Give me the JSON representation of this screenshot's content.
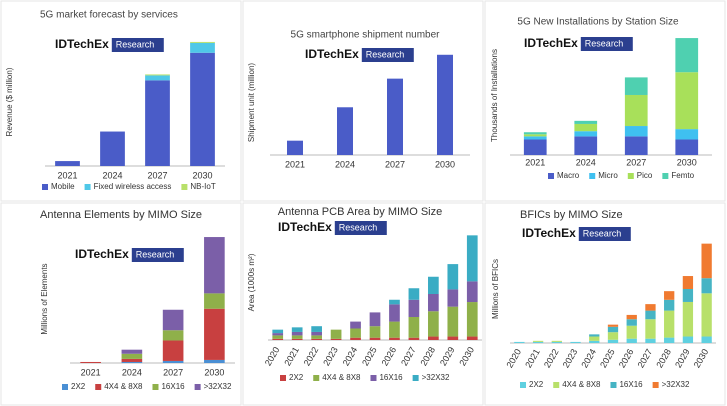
{
  "chart_data": [
    {
      "type": "bar",
      "title": "5G market forecast by services",
      "y_label": "Revenue ($ million)",
      "brand": "IDTechEx",
      "brand_tag": "Research",
      "categories": [
        "2021",
        "2024",
        "2027",
        "2030"
      ],
      "ylim": [
        0,
        130
      ],
      "series": [
        {
          "name": "Mobile",
          "color": "#4a5cc8",
          "values": [
            5,
            35,
            87,
            115
          ]
        },
        {
          "name": "Fixed wireless access",
          "color": "#4fc8e8",
          "values": [
            0,
            0,
            5,
            10
          ]
        },
        {
          "name": "NB-IoT",
          "color": "#b8e06a",
          "values": [
            0,
            0,
            1,
            1
          ]
        }
      ]
    },
    {
      "type": "bar",
      "title": "5G smartphone shipment number",
      "y_label": "Shipment unit (million)",
      "brand": "IDTechEx",
      "brand_tag": "Research",
      "categories": [
        "2021",
        "2024",
        "2027",
        "2030"
      ],
      "ylim": [
        0,
        110
      ],
      "series": [
        {
          "color": "#4a5cc8",
          "values": [
            15,
            50,
            80,
            105
          ]
        }
      ]
    },
    {
      "type": "bar",
      "title": "5G New Installations by Station Size",
      "y_label": "Thousands of Installations",
      "brand": "IDTechEx",
      "brand_tag": "Research",
      "categories": [
        "2021",
        "2024",
        "2027",
        "2030"
      ],
      "ylim": [
        0,
        115
      ],
      "series": [
        {
          "name": "Macro",
          "color": "#4a5cc8",
          "values": [
            15,
            18,
            18,
            15
          ]
        },
        {
          "name": "Micro",
          "color": "#3fc0f0",
          "values": [
            3,
            5,
            10,
            10
          ]
        },
        {
          "name": "Pico",
          "color": "#a8e05a",
          "values": [
            2,
            7,
            30,
            55
          ]
        },
        {
          "name": "Femto",
          "color": "#4fd0b0",
          "values": [
            2,
            3,
            17,
            33
          ]
        }
      ]
    },
    {
      "type": "bar",
      "title": "Antenna Elements by MIMO Size",
      "y_label": "Millions of Elements",
      "brand": "IDTechEx",
      "brand_tag": "Research",
      "categories": [
        "2021",
        "2024",
        "2027",
        "2030"
      ],
      "ylim": [
        0,
        125
      ],
      "series": [
        {
          "name": "2X2",
          "color": "#4a8fd4",
          "values": [
            0,
            1,
            2,
            3
          ]
        },
        {
          "name": "4X4 & 8X8",
          "color": "#c84040",
          "values": [
            1,
            3,
            20,
            50
          ]
        },
        {
          "name": "16X16",
          "color": "#8fb04a",
          "values": [
            0,
            5,
            10,
            15
          ]
        },
        {
          "name": ">32X32",
          "color": "#7b5fa8",
          "values": [
            0,
            4,
            20,
            55
          ]
        }
      ]
    },
    {
      "type": "bar",
      "title": "Antenna PCB Area by MIMO Size",
      "y_label": "Area (1000s m²)",
      "brand": "IDTechEx",
      "brand_tag": "Research",
      "categories": [
        "2020",
        "2021",
        "2022",
        "2023",
        "2024",
        "2025",
        "2026",
        "2027",
        "2028",
        "2029",
        "2030"
      ],
      "ylim": [
        0,
        100
      ],
      "series": [
        {
          "name": "2X2",
          "color": "#c84040",
          "values": [
            1,
            1,
            1,
            1,
            2,
            2,
            2,
            2,
            3,
            3,
            3
          ]
        },
        {
          "name": "4X4 & 8X8",
          "color": "#8fb04a",
          "values": [
            3,
            3,
            3,
            8,
            8,
            10,
            14,
            18,
            22,
            26,
            30
          ]
        },
        {
          "name": "16X16",
          "color": "#7b5fa8",
          "values": [
            2,
            3,
            3,
            0,
            6,
            12,
            15,
            15,
            15,
            15,
            18
          ]
        },
        {
          "name": ">32X32",
          "color": "#3aacc4",
          "values": [
            3,
            4,
            5,
            0,
            0,
            0,
            4,
            10,
            15,
            22,
            40
          ]
        }
      ]
    },
    {
      "type": "bar",
      "title": "BFICs by MIMO Size",
      "y_label": "Millions of BFICs",
      "brand": "IDTechEx",
      "brand_tag": "Research",
      "categories": [
        "2020",
        "2021",
        "2022",
        "2023",
        "2024",
        "2025",
        "2026",
        "2027",
        "2028",
        "2029",
        "2030"
      ],
      "ylim": [
        0,
        100
      ],
      "series": [
        {
          "name": "2X2",
          "color": "#5fd0e0",
          "values": [
            1,
            1,
            1,
            1,
            2,
            3,
            4,
            4,
            5,
            6,
            6
          ]
        },
        {
          "name": "4X4 & 8X8",
          "color": "#b8e06a",
          "values": [
            0,
            1,
            1,
            0,
            4,
            7,
            12,
            18,
            25,
            32,
            40
          ]
        },
        {
          "name": "16X16",
          "color": "#46b4c4",
          "values": [
            0,
            0,
            0,
            0,
            2,
            5,
            6,
            8,
            10,
            12,
            14
          ]
        },
        {
          "name": ">32X32",
          "color": "#f07a30",
          "values": [
            0,
            0,
            0,
            0,
            0,
            2,
            4,
            6,
            8,
            12,
            32
          ]
        }
      ]
    }
  ]
}
